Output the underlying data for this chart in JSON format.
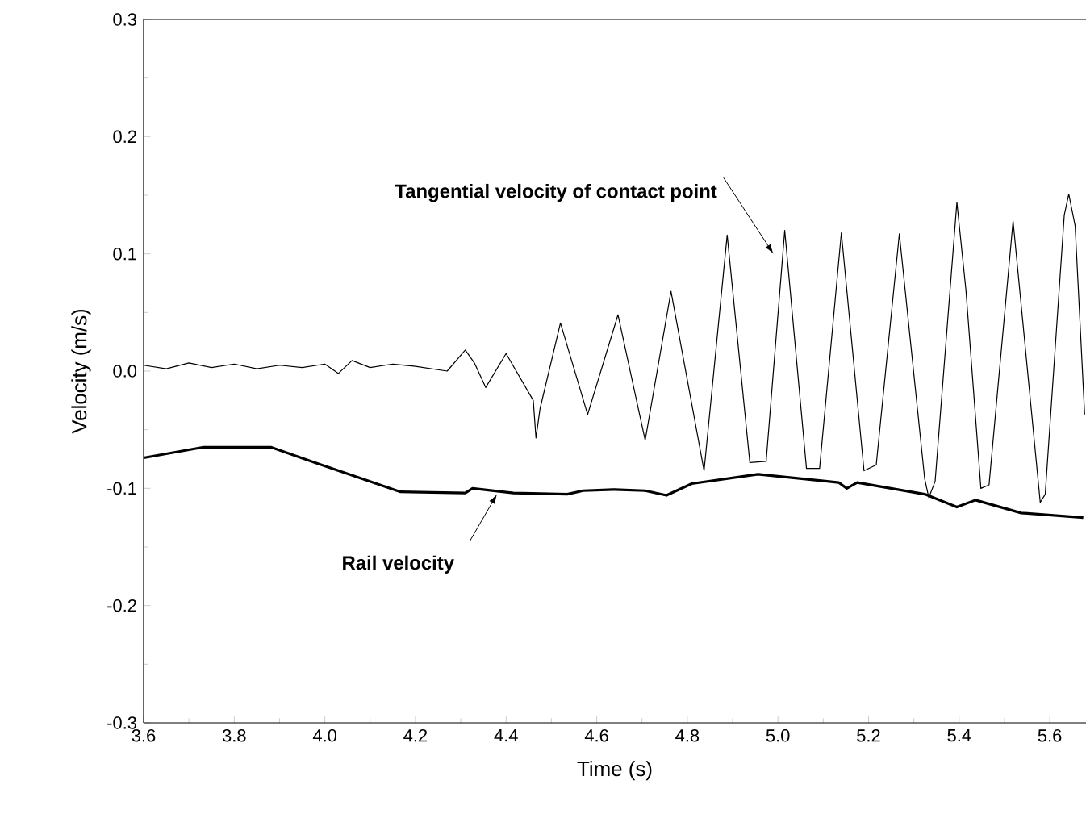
{
  "chart_data": {
    "type": "line",
    "xlabel": "Time (s)",
    "ylabel": "Velocity (m/s)",
    "xlim": [
      3.6,
      5.68
    ],
    "ylim": [
      -0.3,
      0.3
    ],
    "xticks": [
      3.6,
      3.8,
      {
        "value": 4,
        "label": "4.0"
      },
      4.2,
      4.4,
      4.6,
      4.8,
      {
        "value": 5,
        "label": "5.0"
      },
      5.2,
      5.4,
      5.6
    ],
    "yticks": [
      -0.3,
      -0.2,
      -0.1,
      {
        "value": 0,
        "label": "0.0"
      },
      0.1,
      0.2,
      0.3
    ],
    "series": [
      {
        "name": "Tangential velocity of contact point",
        "color": "#000000",
        "x": [
          3.6,
          3.65,
          3.7,
          3.75,
          3.8,
          3.85,
          3.9,
          3.95,
          4.0,
          4.03,
          4.06,
          4.1,
          4.15,
          4.2,
          4.27,
          4.31,
          4.33,
          4.355,
          4.4,
          4.46,
          4.466,
          4.475,
          4.52,
          4.58,
          4.647,
          4.707,
          4.764,
          4.837,
          4.888,
          4.938,
          4.974,
          5.015,
          5.063,
          5.092,
          5.14,
          5.19,
          5.217,
          5.268,
          5.324,
          5.333,
          5.347,
          5.395,
          5.415,
          5.448,
          5.466,
          5.519,
          5.579,
          5.59,
          5.632,
          5.642,
          5.656,
          5.677
        ],
        "values": [
          0.005,
          0.002,
          0.007,
          0.003,
          0.006,
          0.002,
          0.005,
          0.003,
          0.006,
          -0.002,
          0.009,
          0.003,
          0.006,
          0.004,
          0.0,
          0.018,
          0.007,
          -0.014,
          0.015,
          -0.025,
          -0.057,
          -0.032,
          0.041,
          -0.037,
          0.048,
          -0.059,
          0.068,
          -0.085,
          0.116,
          -0.078,
          -0.077,
          0.12,
          -0.083,
          -0.083,
          0.118,
          -0.085,
          -0.08,
          0.117,
          -0.092,
          -0.108,
          -0.094,
          0.144,
          0.069,
          -0.1,
          -0.097,
          0.128,
          -0.112,
          -0.105,
          0.133,
          0.151,
          0.124,
          -0.037
        ]
      },
      {
        "name": "Rail velocity",
        "color": "#000000",
        "x": [
          3.6,
          3.73,
          3.882,
          3.977,
          4.084,
          4.167,
          4.31,
          4.326,
          4.416,
          4.535,
          4.57,
          4.636,
          4.707,
          4.754,
          4.81,
          4.956,
          5.134,
          5.152,
          5.175,
          5.324,
          5.395,
          5.436,
          5.537,
          5.674
        ],
        "values": [
          -0.074,
          -0.065,
          -0.065,
          -0.078,
          -0.092,
          -0.103,
          -0.104,
          -0.1,
          -0.104,
          -0.105,
          -0.102,
          -0.101,
          -0.102,
          -0.106,
          -0.096,
          -0.088,
          -0.095,
          -0.1,
          -0.095,
          -0.105,
          -0.116,
          -0.11,
          -0.121,
          -0.125
        ]
      }
    ]
  }
}
